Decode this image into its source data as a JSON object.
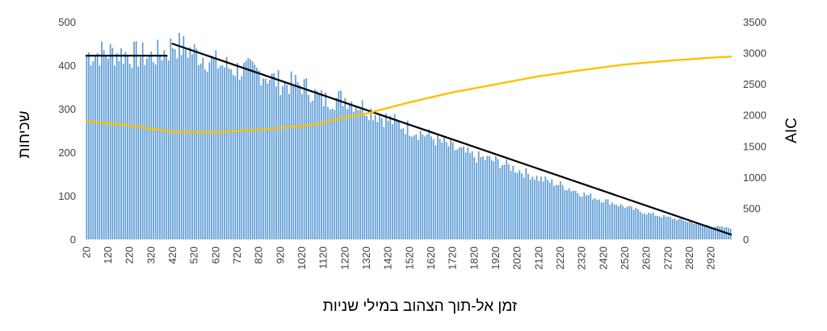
{
  "chart_data": {
    "type": "bar",
    "xlabel": "זמן אל-תוך הצהוב במילי שניות",
    "ylabel": "שכיחות",
    "y2label": "AIC",
    "ylim": [
      0,
      500
    ],
    "y2lim": [
      0,
      3500
    ],
    "yticks": [
      0,
      100,
      200,
      300,
      400,
      500
    ],
    "y2ticks": [
      0,
      500,
      1000,
      1500,
      2000,
      2500,
      3000,
      3500
    ],
    "xtick_labels": [
      "20",
      "120",
      "220",
      "320",
      "420",
      "520",
      "620",
      "720",
      "820",
      "920",
      "1020",
      "1120",
      "1220",
      "1320",
      "1420",
      "1520",
      "1620",
      "1720",
      "1820",
      "1920",
      "2020",
      "2120",
      "2220",
      "2320",
      "2420",
      "2520",
      "2620",
      "2720",
      "2820",
      "2920"
    ],
    "grid": false,
    "legend": "none",
    "bins": {
      "start": 20,
      "end": 3020,
      "step": 10
    },
    "frequency_profile": [
      {
        "x": 20,
        "y": 425
      },
      {
        "x": 120,
        "y": 430
      },
      {
        "x": 220,
        "y": 425
      },
      {
        "x": 320,
        "y": 420
      },
      {
        "x": 400,
        "y": 435
      },
      {
        "x": 420,
        "y": 450
      },
      {
        "x": 520,
        "y": 430
      },
      {
        "x": 620,
        "y": 405
      },
      {
        "x": 720,
        "y": 390
      },
      {
        "x": 820,
        "y": 385
      },
      {
        "x": 920,
        "y": 360
      },
      {
        "x": 1020,
        "y": 355
      },
      {
        "x": 1120,
        "y": 320
      },
      {
        "x": 1220,
        "y": 325
      },
      {
        "x": 1320,
        "y": 300
      },
      {
        "x": 1420,
        "y": 275
      },
      {
        "x": 1520,
        "y": 255
      },
      {
        "x": 1620,
        "y": 235
      },
      {
        "x": 1720,
        "y": 210
      },
      {
        "x": 1820,
        "y": 190
      },
      {
        "x": 1920,
        "y": 180
      },
      {
        "x": 2020,
        "y": 160
      },
      {
        "x": 2120,
        "y": 140
      },
      {
        "x": 2220,
        "y": 125
      },
      {
        "x": 2320,
        "y": 105
      },
      {
        "x": 2420,
        "y": 90
      },
      {
        "x": 2520,
        "y": 75
      },
      {
        "x": 2620,
        "y": 60
      },
      {
        "x": 2720,
        "y": 50
      },
      {
        "x": 2820,
        "y": 40
      },
      {
        "x": 2920,
        "y": 30
      },
      {
        "x": 3020,
        "y": 25
      }
    ],
    "fit_segments": [
      {
        "x": [
          20,
          400
        ],
        "y": [
          422,
          422
        ]
      },
      {
        "x": [
          420,
          3020
        ],
        "y": [
          450,
          10
        ]
      }
    ],
    "aic_curve": [
      {
        "x": 20,
        "y": 1900
      },
      {
        "x": 220,
        "y": 1830
      },
      {
        "x": 420,
        "y": 1730
      },
      {
        "x": 620,
        "y": 1720
      },
      {
        "x": 820,
        "y": 1760
      },
      {
        "x": 1020,
        "y": 1820
      },
      {
        "x": 1120,
        "y": 1870
      },
      {
        "x": 1220,
        "y": 1960
      },
      {
        "x": 1320,
        "y": 2020
      },
      {
        "x": 1520,
        "y": 2200
      },
      {
        "x": 1720,
        "y": 2360
      },
      {
        "x": 1920,
        "y": 2490
      },
      {
        "x": 2120,
        "y": 2620
      },
      {
        "x": 2320,
        "y": 2720
      },
      {
        "x": 2520,
        "y": 2810
      },
      {
        "x": 2720,
        "y": 2870
      },
      {
        "x": 2920,
        "y": 2920
      },
      {
        "x": 3020,
        "y": 2940
      }
    ],
    "colors": {
      "bars": "#5b9bd5",
      "fit": "#000000",
      "aic": "#ffc000",
      "axis": "#d9d9d9",
      "text": "#404040"
    }
  }
}
